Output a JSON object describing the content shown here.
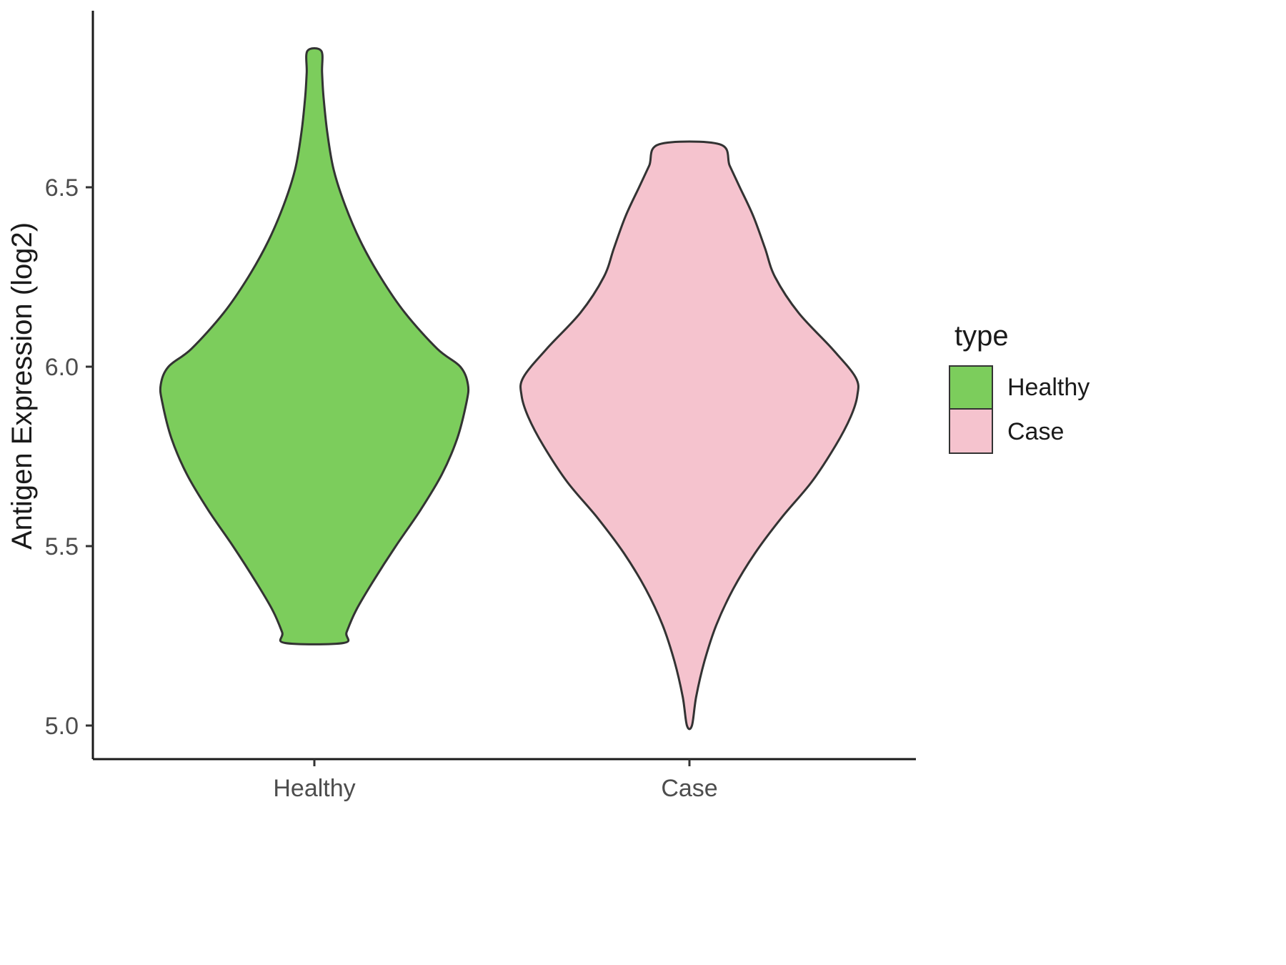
{
  "figure": {
    "y_axis_title": "Antigen Expression (log2)",
    "x_tick_labels": [
      "Healthy",
      "Case"
    ],
    "y_tick_labels": [
      "5.0",
      "5.5",
      "6.0",
      "6.5"
    ]
  },
  "legend": {
    "title": "type",
    "items": [
      {
        "label": "Healthy",
        "color": "#7CCD5C"
      },
      {
        "label": "Case",
        "color": "#F5C3CE"
      }
    ]
  },
  "chart_data": {
    "type": "violin",
    "title": "",
    "xlabel": "",
    "ylabel": "Antigen Expression (log2)",
    "categories": [
      "Healthy",
      "Case"
    ],
    "y_ticks": [
      5.0,
      5.5,
      6.0,
      6.5
    ],
    "ylim": [
      4.9,
      6.95
    ],
    "grid": false,
    "legend_position": "right",
    "legend_title": "type",
    "series": [
      {
        "name": "Healthy",
        "fill": "#7CCD5C",
        "stroke": "#333333",
        "min": 5.23,
        "max": 6.88,
        "peak_value": 5.95,
        "profile": [
          [
            6.88,
            0.045
          ],
          [
            6.82,
            0.05
          ],
          [
            6.75,
            0.06
          ],
          [
            6.65,
            0.085
          ],
          [
            6.55,
            0.125
          ],
          [
            6.45,
            0.2
          ],
          [
            6.35,
            0.3
          ],
          [
            6.25,
            0.43
          ],
          [
            6.15,
            0.59
          ],
          [
            6.05,
            0.8
          ],
          [
            6.0,
            0.95
          ],
          [
            5.95,
            1.0
          ],
          [
            5.9,
            0.99
          ],
          [
            5.8,
            0.93
          ],
          [
            5.7,
            0.83
          ],
          [
            5.6,
            0.69
          ],
          [
            5.5,
            0.53
          ],
          [
            5.4,
            0.38
          ],
          [
            5.32,
            0.27
          ],
          [
            5.26,
            0.21
          ],
          [
            5.23,
            0.19
          ]
        ]
      },
      {
        "name": "Case",
        "fill": "#F5C3CE",
        "stroke": "#333333",
        "min": 5.0,
        "max": 6.62,
        "peak_value": 5.95,
        "profile": [
          [
            6.62,
            0.18
          ],
          [
            6.56,
            0.24
          ],
          [
            6.5,
            0.3
          ],
          [
            6.42,
            0.38
          ],
          [
            6.33,
            0.45
          ],
          [
            6.25,
            0.51
          ],
          [
            6.15,
            0.65
          ],
          [
            6.05,
            0.85
          ],
          [
            5.97,
            0.99
          ],
          [
            5.92,
            1.0
          ],
          [
            5.86,
            0.96
          ],
          [
            5.78,
            0.87
          ],
          [
            5.68,
            0.73
          ],
          [
            5.58,
            0.55
          ],
          [
            5.48,
            0.39
          ],
          [
            5.38,
            0.26
          ],
          [
            5.28,
            0.16
          ],
          [
            5.18,
            0.09
          ],
          [
            5.08,
            0.04
          ],
          [
            5.0,
            0.015
          ]
        ]
      }
    ]
  }
}
